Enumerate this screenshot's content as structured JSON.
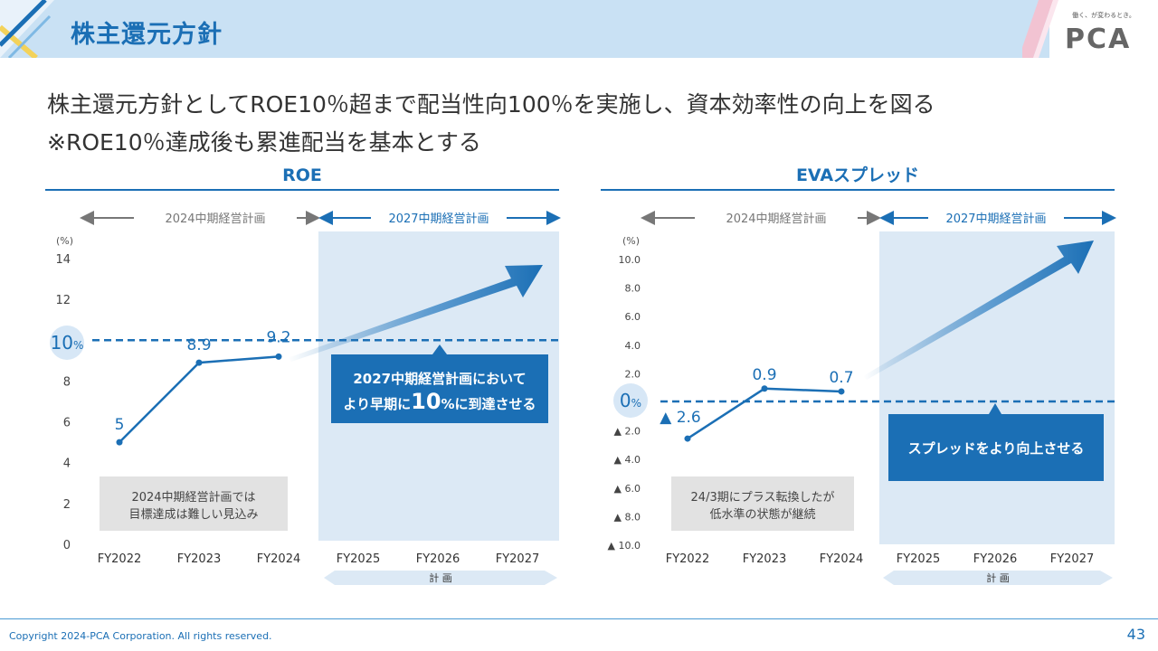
{
  "header": {
    "title": "株主還元方針",
    "logo_tagline": "働く、が変わるとき。",
    "logo_text": "PCA"
  },
  "headline": {
    "line1": "株主還元方針としてROE10％超まで配当性向100％を実施し、資本効率性の向上を図る",
    "line2": "※ROE10％達成後も累進配当を基本とする"
  },
  "footer": {
    "copyright": "Copyright 2024-PCA Corporation. All rights reserved.",
    "page": "43"
  },
  "colors": {
    "accent": "#1b6fb5",
    "plan_bg": "#dce9f5",
    "note_bg": "#e2e2e2"
  },
  "chart_data": [
    {
      "type": "line",
      "title": "ROE",
      "unit": "(%)",
      "period_labels": {
        "past": "2024中期経営計画",
        "plan": "2027中期経営計画"
      },
      "categories": [
        "FY2022",
        "FY2023",
        "FY2024",
        "FY2025",
        "FY2026",
        "FY2027"
      ],
      "series": [
        {
          "name": "ROE",
          "values": [
            5,
            8.9,
            9.2,
            null,
            null,
            null
          ]
        }
      ],
      "data_labels": [
        "5",
        "8.9",
        "9.2"
      ],
      "y_ticks": [
        "0",
        "2",
        "4",
        "6",
        "8",
        "10",
        "12",
        "14"
      ],
      "y_tick_values": [
        0,
        2,
        4,
        6,
        8,
        10,
        12,
        14
      ],
      "ylim": [
        0,
        14
      ],
      "target_value": 10,
      "target_label": "10",
      "target_unit": "%",
      "plan_start_index": 3,
      "plan_label": "計 画",
      "callout": {
        "line1": "2027中期経営計画において",
        "line2_prefix": "より早期に",
        "line2_big": "10",
        "line2_suffix": "%に到達させる"
      },
      "note": {
        "line1": "2024中期経営計画では",
        "line2": "目標達成は難しい見込み"
      }
    },
    {
      "type": "line",
      "title": "EVAスプレッド",
      "unit": "(%)",
      "period_labels": {
        "past": "2024中期経営計画",
        "plan": "2027中期経営計画"
      },
      "categories": [
        "FY2022",
        "FY2023",
        "FY2024",
        "FY2025",
        "FY2026",
        "FY2027"
      ],
      "series": [
        {
          "name": "EVAスプレッド",
          "values": [
            -2.6,
            0.9,
            0.7,
            null,
            null,
            null
          ]
        }
      ],
      "data_labels": [
        "▲ 2.6",
        "0.9",
        "0.7"
      ],
      "y_ticks": [
        "▲ 10.0",
        "▲ 8.0",
        "▲ 6.0",
        "▲ 4.0",
        "▲ 2.0",
        "2.0",
        "4.0",
        "6.0",
        "8.0",
        "10.0"
      ],
      "y_tick_values": [
        -10,
        -8,
        -6,
        -4,
        -2,
        2,
        4,
        6,
        8,
        10
      ],
      "ylim": [
        -10,
        10
      ],
      "target_value": 0,
      "target_label": "0",
      "target_unit": "%",
      "plan_start_index": 3,
      "plan_label": "計 画",
      "callout": {
        "line1": "スプレッドをより向上させる"
      },
      "note": {
        "line1": "24/3期にプラス転換したが",
        "line2": "低水準の状態が継続"
      }
    }
  ]
}
